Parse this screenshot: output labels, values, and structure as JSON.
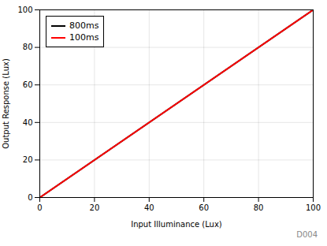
{
  "chart_data": {
    "type": "line",
    "x": [
      0,
      100
    ],
    "series": [
      {
        "name": "800ms",
        "color": "#000000",
        "values": [
          0,
          100
        ]
      },
      {
        "name": "100ms",
        "color": "#ff0000",
        "values": [
          0,
          100
        ]
      }
    ],
    "xlabel": "Input Illuminance (Lux)",
    "ylabel": "Output Response (Lux)",
    "xlim": [
      0,
      100
    ],
    "ylim": [
      0,
      100
    ],
    "xticks": [
      0,
      20,
      40,
      60,
      80,
      100
    ],
    "yticks": [
      0,
      20,
      40,
      60,
      80,
      100
    ],
    "grid": true,
    "legend": "upper left",
    "annotation": "D004"
  }
}
